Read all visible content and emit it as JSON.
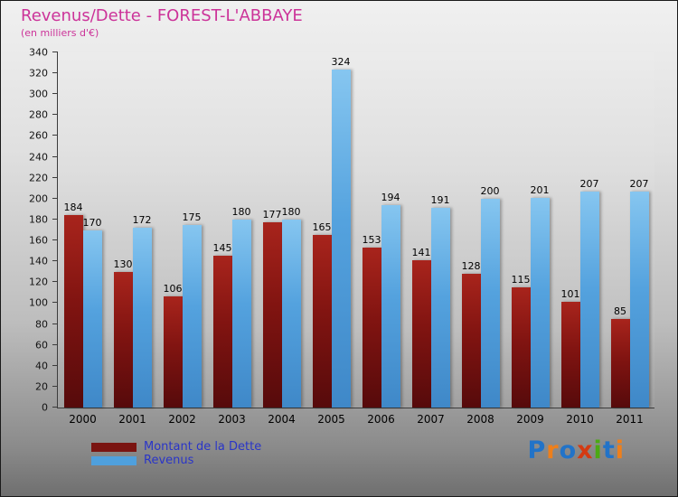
{
  "header": {
    "title": "Revenus/Dette - FOREST-L'ABBAYE",
    "subtitle": "(en milliers d'€)"
  },
  "chart_data": {
    "type": "bar",
    "title": "Revenus/Dette - FOREST-L'ABBAYE",
    "subtitle": "(en milliers d'€)",
    "categories": [
      "2000",
      "2001",
      "2002",
      "2003",
      "2004",
      "2005",
      "2006",
      "2007",
      "2008",
      "2009",
      "2010",
      "2011"
    ],
    "series": [
      {
        "name": "Montant de la Dette",
        "color": "#7a1411",
        "values": [
          184,
          130,
          106,
          145,
          177,
          165,
          153,
          141,
          128,
          115,
          101,
          85
        ]
      },
      {
        "name": "Revenus",
        "color": "#4fa0dd",
        "values": [
          170,
          172,
          175,
          180,
          180,
          324,
          194,
          191,
          200,
          201,
          207,
          207
        ]
      }
    ],
    "ylim": [
      0,
      340
    ],
    "ytick_step": 20,
    "grid": false,
    "value_labels": true,
    "legend_position": "bottom-left"
  },
  "logo": {
    "text": "Proxiti",
    "letters": [
      {
        "char": "P",
        "color": "#2273c8"
      },
      {
        "char": "r",
        "color": "#ef7f1a"
      },
      {
        "char": "o",
        "color": "#2273c8"
      },
      {
        "char": "x",
        "color": "#d43a12"
      },
      {
        "char": "i",
        "color": "#4ca914"
      },
      {
        "char": "t",
        "color": "#2273c8"
      },
      {
        "char": "i",
        "color": "#ef7f1a"
      }
    ]
  }
}
